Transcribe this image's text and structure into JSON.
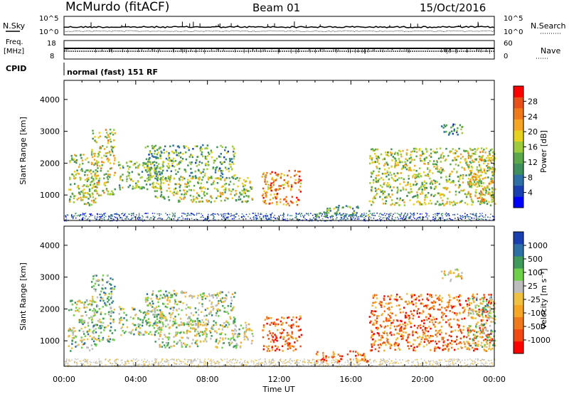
{
  "header": {
    "station": "McMurdo (fitACF)",
    "beam": "Beam 01",
    "date": "15/Oct/2016"
  },
  "strips": {
    "nsky_label": "N.Sky",
    "nsearch_label": "N.Search",
    "nsky_ticks": [
      "10^5",
      "10^0"
    ],
    "nsearch_ticks": [
      "10^5",
      "10^0"
    ],
    "freq_label_1": "Freq.",
    "freq_label_2": "[MHz]",
    "freq_ticks": [
      "18",
      "8"
    ],
    "nave_label": "Nave",
    "nave_ticks": [
      "60",
      "0"
    ],
    "cpid_label": "CPID",
    "cpid_text": "normal (fast) 151 RF"
  },
  "chart_data": [
    {
      "type": "heatmap",
      "name": "power-panel",
      "ylabel": "Slant Range [km]",
      "xlabel": "",
      "ylim": [
        200,
        4600
      ],
      "yticks": [
        1000,
        2000,
        3000,
        4000
      ],
      "x_ticks": [
        "00:00",
        "04:00",
        "08:00",
        "12:00",
        "16:00",
        "20:00",
        "00:00"
      ],
      "xlim_hours": [
        0,
        24
      ],
      "colorbar": {
        "label": "Power [dB]",
        "ticks": [
          "28",
          "24",
          "20",
          "16",
          "12",
          "8",
          "4"
        ],
        "colors": [
          "#0000ff",
          "#1a3fb0",
          "#2e6fa6",
          "#3f8f5c",
          "#5aa84a",
          "#9ccc3c",
          "#e6d21e",
          "#f5a623",
          "#f07a1a",
          "#e8501a",
          "#ff0000"
        ]
      },
      "blobs": [
        {
          "t0": 0.2,
          "t1": 1.8,
          "r0": 700,
          "r1": 2300,
          "level": 0.5
        },
        {
          "t0": 1.5,
          "t1": 2.8,
          "r0": 1000,
          "r1": 3100,
          "level": 0.55
        },
        {
          "t0": 3.0,
          "t1": 5.5,
          "r0": 1200,
          "r1": 2100,
          "level": 0.45
        },
        {
          "t0": 4.5,
          "t1": 9.5,
          "r0": 1500,
          "r1": 2600,
          "level": 0.4
        },
        {
          "t0": 5.0,
          "t1": 10.5,
          "r0": 800,
          "r1": 1600,
          "level": 0.5
        },
        {
          "t0": 11.0,
          "t1": 13.2,
          "r0": 700,
          "r1": 1800,
          "level": 0.75
        },
        {
          "t0": 14.0,
          "t1": 17.0,
          "r0": 350,
          "r1": 700,
          "level": 0.4
        },
        {
          "t0": 17.0,
          "t1": 24.0,
          "r0": 700,
          "r1": 2500,
          "level": 0.5
        },
        {
          "t0": 21.0,
          "t1": 22.2,
          "r0": 2900,
          "r1": 3300,
          "level": 0.3
        },
        {
          "t0": 22.5,
          "t1": 24.0,
          "r0": 800,
          "r1": 2400,
          "level": 0.6
        }
      ]
    },
    {
      "type": "heatmap",
      "name": "velocity-panel",
      "ylabel": "Slant Range [km]",
      "xlabel": "Time UT",
      "ylim": [
        200,
        4600
      ],
      "yticks": [
        1000,
        2000,
        3000,
        4000
      ],
      "x_ticks": [
        "00:00",
        "04:00",
        "08:00",
        "12:00",
        "16:00",
        "20:00",
        "00:00"
      ],
      "xlim_hours": [
        0,
        24
      ],
      "colorbar": {
        "label": "Velocity [m s⁻¹]",
        "ticks": [
          "1000",
          "500",
          "100",
          "25",
          "-25",
          "-100",
          "-500",
          "-1000"
        ],
        "colors": [
          "#ff0000",
          "#f04a10",
          "#f07a1a",
          "#f5a623",
          "#f0c040",
          "#bdbdbd",
          "#6ecf4a",
          "#3f9a5c",
          "#2e6fa6",
          "#1a3fb0"
        ]
      },
      "blobs": [
        {
          "t0": 0.2,
          "t1": 1.8,
          "r0": 700,
          "r1": 2300,
          "level": 0.6
        },
        {
          "t0": 1.5,
          "t1": 2.8,
          "r0": 1000,
          "r1": 3100,
          "level": 0.65
        },
        {
          "t0": 3.0,
          "t1": 5.5,
          "r0": 1200,
          "r1": 2100,
          "level": 0.6
        },
        {
          "t0": 4.5,
          "t1": 9.5,
          "r0": 1500,
          "r1": 2600,
          "level": 0.6
        },
        {
          "t0": 5.0,
          "t1": 10.5,
          "r0": 800,
          "r1": 1600,
          "level": 0.55
        },
        {
          "t0": 11.0,
          "t1": 13.2,
          "r0": 700,
          "r1": 1800,
          "level": 0.2
        },
        {
          "t0": 14.0,
          "t1": 17.0,
          "r0": 350,
          "r1": 700,
          "level": 0.25
        },
        {
          "t0": 17.0,
          "t1": 24.0,
          "r0": 700,
          "r1": 2500,
          "level": 0.25
        },
        {
          "t0": 21.0,
          "t1": 22.2,
          "r0": 2900,
          "r1": 3300,
          "level": 0.5
        },
        {
          "t0": 22.5,
          "t1": 24.0,
          "r0": 800,
          "r1": 2400,
          "level": 0.6
        }
      ]
    }
  ]
}
